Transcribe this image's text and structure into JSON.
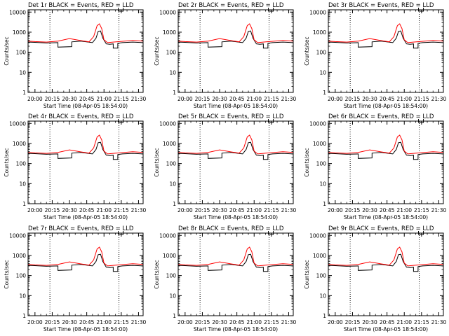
{
  "chart_data": [
    {
      "title": "Det 1r BLACK = Events, RED = LLD",
      "ylabel": "Counts/sec",
      "xlabel": "Start Time (08-Apr-05 18:54:00)",
      "x_ticks": [
        "20:00",
        "20:15",
        "20:30",
        "20:45",
        "21:00",
        "21:15",
        "21:30"
      ],
      "y_ticks": [
        "1",
        "10",
        "100",
        "1000",
        "10000"
      ]
    },
    {
      "title": "Det 2r BLACK = Events, RED = LLD",
      "ylabel": "Counts/sec",
      "xlabel": "Start Time (08-Apr-05 18:54:00)",
      "x_ticks": [
        "20:00",
        "20:15",
        "20:30",
        "20:45",
        "21:00",
        "21:15",
        "21:30"
      ],
      "y_ticks": [
        "1",
        "10",
        "100",
        "1000",
        "10000"
      ]
    },
    {
      "title": "Det 3r BLACK = Events, RED = LLD",
      "ylabel": "Counts/sec",
      "xlabel": "Start Time (08-Apr-05 18:54:00)",
      "x_ticks": [
        "20:00",
        "20:15",
        "20:30",
        "20:45",
        "21:00",
        "21:15",
        "21:30"
      ],
      "y_ticks": [
        "1",
        "10",
        "100",
        "1000",
        "10000"
      ]
    },
    {
      "title": "Det 4r BLACK = Events, RED = LLD",
      "ylabel": "Counts/sec",
      "xlabel": "Start Time (08-Apr-05 18:54:00)",
      "x_ticks": [
        "20:00",
        "20:15",
        "20:30",
        "20:45",
        "21:00",
        "21:15",
        "21:30"
      ],
      "y_ticks": [
        "1",
        "10",
        "100",
        "1000",
        "10000"
      ]
    },
    {
      "title": "Det 5r BLACK = Events, RED = LLD",
      "ylabel": "Counts/sec",
      "xlabel": "Start Time (08-Apr-05 18:54:00)",
      "x_ticks": [
        "20:00",
        "20:15",
        "20:30",
        "20:45",
        "21:00",
        "21:15",
        "21:30"
      ],
      "y_ticks": [
        "1",
        "10",
        "100",
        "1000",
        "10000"
      ]
    },
    {
      "title": "Det 6r BLACK = Events, RED = LLD",
      "ylabel": "Counts/sec",
      "xlabel": "Start Time (08-Apr-05 18:54:00)",
      "x_ticks": [
        "20:00",
        "20:15",
        "20:30",
        "20:45",
        "21:00",
        "21:15",
        "21:30"
      ],
      "y_ticks": [
        "1",
        "10",
        "100",
        "1000",
        "10000"
      ]
    },
    {
      "title": "Det 7r BLACK = Events, RED = LLD",
      "ylabel": "Counts/sec",
      "xlabel": "Start Time (08-Apr-05 18:54:00)",
      "x_ticks": [
        "20:00",
        "20:15",
        "20:30",
        "20:45",
        "21:00",
        "21:15",
        "21:30"
      ],
      "y_ticks": [
        "1",
        "10",
        "100",
        "1000",
        "10000"
      ]
    },
    {
      "title": "Det 8r BLACK = Events, RED = LLD",
      "ylabel": "Counts/sec",
      "xlabel": "Start Time (08-Apr-05 18:54:00)",
      "x_ticks": [
        "20:00",
        "20:15",
        "20:30",
        "20:45",
        "21:00",
        "21:15",
        "21:30"
      ],
      "y_ticks": [
        "1",
        "10",
        "100",
        "1000",
        "10000"
      ]
    },
    {
      "title": "Det 9r BLACK = Events, RED = LLD",
      "ylabel": "Counts/sec",
      "xlabel": "Start Time (08-Apr-05 18:54:00)",
      "x_ticks": [
        "20:00",
        "20:15",
        "20:30",
        "20:45",
        "21:00",
        "21:15",
        "21:30"
      ],
      "y_ticks": [
        "1",
        "10",
        "100",
        "1000",
        "10000"
      ]
    }
  ],
  "shared": {
    "type": "line",
    "y_scale": "log",
    "ylim": [
      1,
      13000
    ],
    "xlim": [
      "19:54",
      "21:34"
    ],
    "vertical_markers": [
      "20:13",
      "21:13"
    ],
    "series_colors": {
      "BLACK": "#000000",
      "RED": "#ff0000"
    },
    "series": [
      {
        "color": "BLACK",
        "x": [
          "19:54",
          "20:00",
          "20:10",
          "20:20",
          "20:20",
          "20:32",
          "20:32",
          "20:40",
          "20:50",
          "20:53",
          "20:55",
          "20:57",
          "20:59",
          "21:02",
          "21:05",
          "21:08",
          "21:08",
          "21:12",
          "21:12",
          "21:16",
          "21:25",
          "21:34"
        ],
        "y": [
          320,
          310,
          290,
          300,
          180,
          190,
          330,
          360,
          300,
          500,
          1100,
          1150,
          500,
          260,
          250,
          260,
          160,
          160,
          280,
          300,
          320,
          300
        ]
      },
      {
        "color": "RED",
        "x": [
          "19:54",
          "20:00",
          "20:10",
          "20:20",
          "20:30",
          "20:40",
          "20:47",
          "20:51",
          "20:54",
          "20:56",
          "20:58",
          "21:00",
          "21:03",
          "21:08",
          "21:16",
          "21:25",
          "21:34"
        ],
        "y": [
          360,
          340,
          320,
          360,
          480,
          380,
          330,
          600,
          2100,
          2600,
          1500,
          420,
          300,
          320,
          350,
          390,
          360
        ]
      }
    ]
  }
}
